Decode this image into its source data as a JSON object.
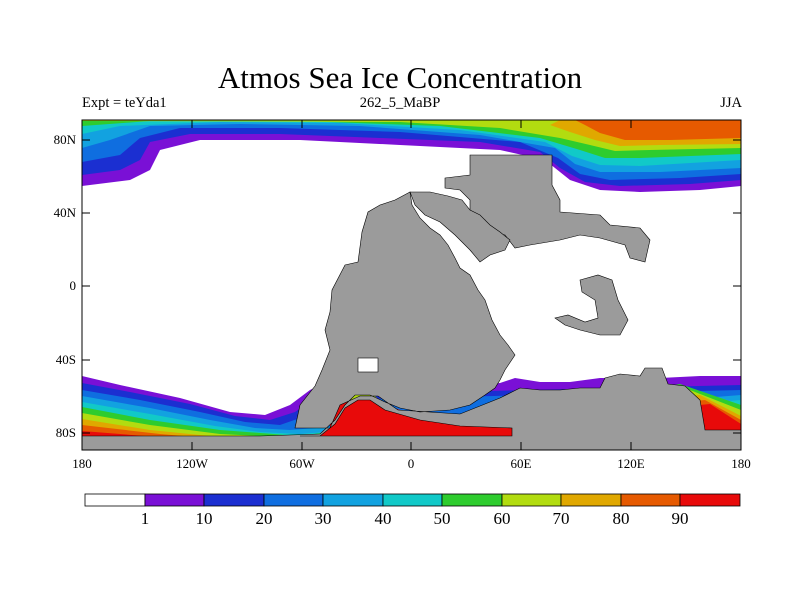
{
  "map": {
    "title": "Atmos Sea Ice Concentration",
    "experiment": "Expt = teYda1",
    "case": "262_5_MaBP",
    "season": "JJA",
    "lat_labels": [
      "80N",
      "40N",
      "0",
      "40S",
      "80S"
    ],
    "lon_labels": [
      "180",
      "120W",
      "60W",
      "0",
      "60E",
      "120E",
      "180"
    ]
  },
  "colorbar": {
    "labels": [
      "1",
      "10",
      "20",
      "30",
      "40",
      "50",
      "60",
      "70",
      "80",
      "90"
    ],
    "colors": [
      "#ffffff",
      "#7a10d6",
      "#1b2fd1",
      "#0f6ee0",
      "#12a2e0",
      "#11c9c8",
      "#2ecc2e",
      "#b2dc10",
      "#e0a800",
      "#e65a00",
      "#e80a0a"
    ]
  },
  "colors": {
    "land": "#9b9b9b",
    "ocean": "#ffffff"
  }
}
